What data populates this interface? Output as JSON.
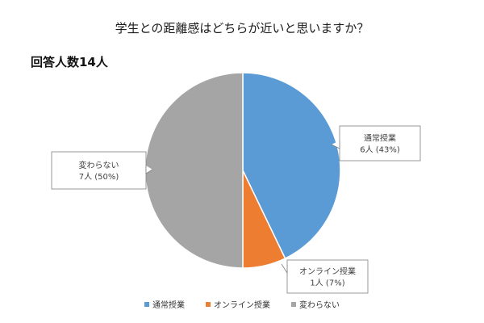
{
  "chart_data": {
    "type": "pie",
    "title": "学生との距離感はどちらが近いと思いますか？",
    "subtitle": "回答人数14人",
    "slices": [
      {
        "name": "通常授業",
        "value": 6,
        "percent": 43,
        "label": "6人 (43%)",
        "color": "#5b9bd5"
      },
      {
        "name": "オンライン授業",
        "value": 1,
        "percent": 7,
        "label": "1人 (7%)",
        "color": "#ed7d31"
      },
      {
        "name": "変わらない",
        "value": 7,
        "percent": 50,
        "label": "7人 (50%)",
        "color": "#a5a5a5"
      }
    ],
    "legend_position": "bottom"
  }
}
